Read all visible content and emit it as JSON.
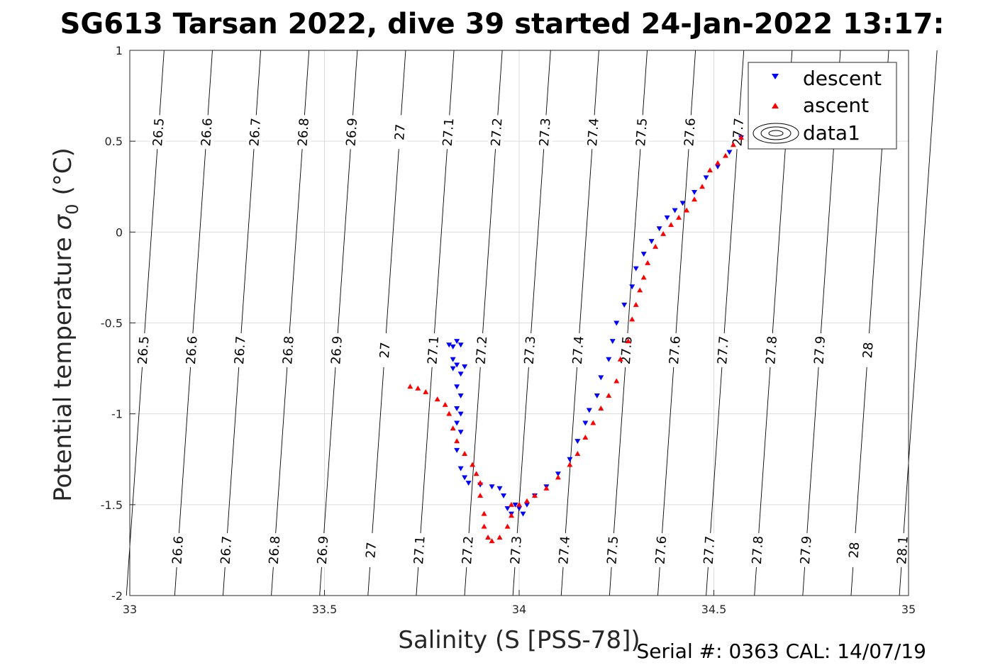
{
  "chart_data": {
    "type": "scatter",
    "title": "SG613 Tarsan 2022, dive 39 started 24-Jan-2022 13:17:",
    "xlabel": "Salinity (S [PSS-78])",
    "ylabel": "Potential temperature",
    "ylabel_symbol": "σ",
    "ylabel_subscript": "0",
    "ylabel_unit": "(°C)",
    "xlim": [
      33,
      35
    ],
    "ylim": [
      -2,
      1
    ],
    "xticks": [
      "33",
      "33.5",
      "34",
      "34.5",
      "35"
    ],
    "yticks": [
      "1",
      "0.5",
      "0",
      "-0.5",
      "-1",
      "-1.5",
      "-2"
    ],
    "grid": true,
    "legend_position": "top-right",
    "legend": [
      {
        "name": "descent",
        "marker": "triangle-down",
        "color": "#0000ff"
      },
      {
        "name": "ascent",
        "marker": "triangle-up",
        "color": "#ff0000"
      },
      {
        "name": "data1",
        "marker": "contour",
        "color": "#000000"
      }
    ],
    "isopycnals": [
      "26.5",
      "26.6",
      "26.7",
      "26.8",
      "26.9",
      "27",
      "27.1",
      "27.2",
      "27.3",
      "27.4",
      "27.5",
      "27.6",
      "27.7",
      "27.8",
      "27.9",
      "28",
      "28.1"
    ],
    "series": [
      {
        "name": "descent",
        "color": "#0000ff",
        "points": [
          [
            33.82,
            -0.62
          ],
          [
            33.83,
            -0.63
          ],
          [
            33.84,
            -0.6
          ],
          [
            33.83,
            -0.7
          ],
          [
            33.84,
            -0.73
          ],
          [
            33.85,
            -0.62
          ],
          [
            33.83,
            -0.75
          ],
          [
            33.85,
            -0.78
          ],
          [
            33.86,
            -0.74
          ],
          [
            33.84,
            -0.85
          ],
          [
            33.85,
            -0.9
          ],
          [
            33.84,
            -0.97
          ],
          [
            33.85,
            -1.0
          ],
          [
            33.84,
            -1.05
          ],
          [
            33.85,
            -1.1
          ],
          [
            33.84,
            -1.2
          ],
          [
            33.85,
            -1.3
          ],
          [
            33.86,
            -1.35
          ],
          [
            33.87,
            -1.38
          ],
          [
            33.9,
            -1.39
          ],
          [
            33.93,
            -1.4
          ],
          [
            33.95,
            -1.41
          ],
          [
            33.96,
            -1.45
          ],
          [
            33.97,
            -1.52
          ],
          [
            33.98,
            -1.55
          ],
          [
            33.99,
            -1.5
          ],
          [
            34.0,
            -1.52
          ],
          [
            34.01,
            -1.55
          ],
          [
            34.02,
            -1.5
          ],
          [
            34.04,
            -1.45
          ],
          [
            34.07,
            -1.4
          ],
          [
            34.1,
            -1.33
          ],
          [
            34.13,
            -1.25
          ],
          [
            34.15,
            -1.15
          ],
          [
            34.17,
            -1.05
          ],
          [
            34.18,
            -0.98
          ],
          [
            34.2,
            -0.9
          ],
          [
            34.21,
            -0.8
          ],
          [
            34.23,
            -0.7
          ],
          [
            34.24,
            -0.6
          ],
          [
            34.25,
            -0.5
          ],
          [
            34.27,
            -0.4
          ],
          [
            34.29,
            -0.3
          ],
          [
            34.3,
            -0.2
          ],
          [
            34.32,
            -0.12
          ],
          [
            34.34,
            -0.05
          ],
          [
            34.36,
            0.02
          ],
          [
            34.38,
            0.08
          ],
          [
            34.4,
            0.12
          ],
          [
            34.42,
            0.16
          ],
          [
            34.45,
            0.22
          ],
          [
            34.48,
            0.3
          ],
          [
            34.51,
            0.36
          ],
          [
            34.54,
            0.44
          ],
          [
            34.57,
            0.52
          ]
        ]
      },
      {
        "name": "ascent",
        "color": "#ff0000",
        "points": [
          [
            33.72,
            -0.85
          ],
          [
            33.74,
            -0.86
          ],
          [
            33.76,
            -0.88
          ],
          [
            33.79,
            -0.92
          ],
          [
            33.81,
            -0.95
          ],
          [
            33.82,
            -1.0
          ],
          [
            33.83,
            -1.08
          ],
          [
            33.84,
            -1.15
          ],
          [
            33.86,
            -1.22
          ],
          [
            33.88,
            -1.28
          ],
          [
            33.89,
            -1.33
          ],
          [
            33.9,
            -1.38
          ],
          [
            33.9,
            -1.45
          ],
          [
            33.91,
            -1.55
          ],
          [
            33.91,
            -1.62
          ],
          [
            33.92,
            -1.68
          ],
          [
            33.93,
            -1.7
          ],
          [
            33.95,
            -1.68
          ],
          [
            33.97,
            -1.62
          ],
          [
            33.98,
            -1.56
          ],
          [
            33.98,
            -1.5
          ],
          [
            34.0,
            -1.5
          ],
          [
            34.02,
            -1.48
          ],
          [
            34.04,
            -1.45
          ],
          [
            34.07,
            -1.41
          ],
          [
            34.1,
            -1.35
          ],
          [
            34.13,
            -1.28
          ],
          [
            34.15,
            -1.22
          ],
          [
            34.17,
            -1.13
          ],
          [
            34.19,
            -1.05
          ],
          [
            34.21,
            -0.97
          ],
          [
            34.23,
            -0.9
          ],
          [
            34.25,
            -0.82
          ],
          [
            34.26,
            -0.7
          ],
          [
            34.28,
            -0.6
          ],
          [
            34.29,
            -0.48
          ],
          [
            34.3,
            -0.4
          ],
          [
            34.31,
            -0.32
          ],
          [
            34.32,
            -0.25
          ],
          [
            34.33,
            -0.17
          ],
          [
            34.35,
            -0.08
          ],
          [
            34.37,
            -0.01
          ],
          [
            34.39,
            0.04
          ],
          [
            34.41,
            0.08
          ],
          [
            34.43,
            0.12
          ],
          [
            34.45,
            0.18
          ],
          [
            34.47,
            0.25
          ],
          [
            34.49,
            0.34
          ],
          [
            34.51,
            0.38
          ],
          [
            34.53,
            0.42
          ],
          [
            34.55,
            0.48
          ],
          [
            34.57,
            0.52
          ]
        ]
      }
    ]
  },
  "footer": "Serial #: 0363  CAL: 14/07/19"
}
